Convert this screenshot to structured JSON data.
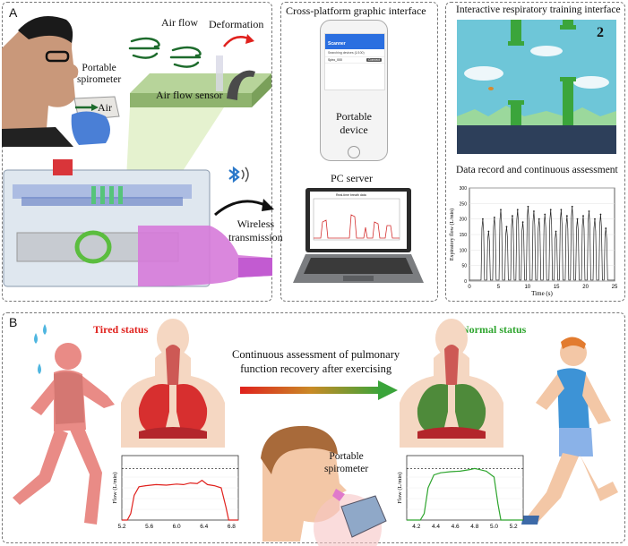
{
  "panel_a": {
    "letter": "A",
    "air_flow": "Air flow",
    "deformation": "Deformation",
    "portable_spirometer": "Portable\nspirometer",
    "air": "Air",
    "air_flow_sensor": "Air flow sensor",
    "wireless_transmission": "Wireless\ntransmission",
    "cross_platform_title": "Cross-platform graphic interface",
    "portable_device": "Portable\ndevice",
    "pc_server": "PC server",
    "phone_app": {
      "header": "Scanner",
      "sub": "Searching devices (1/100)",
      "item": "Spiro_000",
      "button": "Connect"
    },
    "monitor_title": "Real-time breath data",
    "game_title": "Interactive respiratory training interface",
    "game_score": "2",
    "record_title": "Data record and continuous assessment",
    "record_chart": {
      "xlabel": "Time (s)",
      "ylabel": "Expiratory flow (L/min)",
      "x_ticks": [
        "0",
        "5",
        "10",
        "15",
        "20",
        "25"
      ],
      "y_ticks": [
        "0",
        "50",
        "100",
        "150",
        "200",
        "250",
        "300"
      ],
      "xlim": [
        0,
        25
      ],
      "ylim": [
        0,
        300
      ]
    }
  },
  "panel_b": {
    "letter": "B",
    "tired_status": "Tired status",
    "normal_status": "Normal status",
    "caption": "Continuous assessment of pulmonary\nfunction recovery after exercising",
    "portable_spirometer": "Portable\nspirometer",
    "colors": {
      "tired": "#e0211d",
      "normal": "#2ea52e"
    }
  },
  "chart_data": [
    {
      "type": "line",
      "xlabel": "Time (s)",
      "ylabel": "Expiratory flow (L/min)",
      "xlim": [
        0,
        25
      ],
      "ylim": [
        0,
        300
      ],
      "x_ticks": [
        0,
        5,
        10,
        15,
        20,
        25
      ],
      "y_ticks": [
        0,
        50,
        100,
        150,
        200,
        250,
        300
      ],
      "peaks": [
        {
          "t": 2.3,
          "v": 200
        },
        {
          "t": 3.3,
          "v": 160
        },
        {
          "t": 4.3,
          "v": 205
        },
        {
          "t": 5.4,
          "v": 230
        },
        {
          "t": 6.4,
          "v": 175
        },
        {
          "t": 7.4,
          "v": 210
        },
        {
          "t": 8.3,
          "v": 230
        },
        {
          "t": 9.2,
          "v": 190
        },
        {
          "t": 10.1,
          "v": 240
        },
        {
          "t": 11.1,
          "v": 225
        },
        {
          "t": 12.0,
          "v": 200
        },
        {
          "t": 13.0,
          "v": 215
        },
        {
          "t": 14.0,
          "v": 230
        },
        {
          "t": 14.9,
          "v": 160
        },
        {
          "t": 15.8,
          "v": 230
        },
        {
          "t": 16.8,
          "v": 210
        },
        {
          "t": 17.7,
          "v": 240
        },
        {
          "t": 18.6,
          "v": 200
        },
        {
          "t": 19.6,
          "v": 210
        },
        {
          "t": 20.6,
          "v": 225
        },
        {
          "t": 21.6,
          "v": 200
        },
        {
          "t": 22.6,
          "v": 215
        },
        {
          "t": 23.5,
          "v": 170
        }
      ]
    },
    {
      "type": "line",
      "ylabel": "Flow (L/min)",
      "x_ticks": [
        "5.2",
        "5.6",
        "6.0",
        "6.4",
        "6.8"
      ],
      "xlim": [
        5.2,
        6.9
      ],
      "ylim": [
        0,
        600
      ],
      "reference": 480,
      "points": [
        [
          5.2,
          0
        ],
        [
          5.28,
          0
        ],
        [
          5.33,
          60
        ],
        [
          5.38,
          230
        ],
        [
          5.45,
          310
        ],
        [
          5.55,
          320
        ],
        [
          5.7,
          330
        ],
        [
          5.85,
          325
        ],
        [
          6.0,
          335
        ],
        [
          6.1,
          330
        ],
        [
          6.2,
          345
        ],
        [
          6.3,
          340
        ],
        [
          6.37,
          370
        ],
        [
          6.45,
          330
        ],
        [
          6.55,
          320
        ],
        [
          6.65,
          300
        ],
        [
          6.72,
          120
        ],
        [
          6.76,
          0
        ],
        [
          6.9,
          0
        ]
      ]
    },
    {
      "type": "line",
      "ylabel": "Flow (L/min)",
      "x_ticks": [
        "4.2",
        "4.4",
        "4.6",
        "4.8",
        "5.0",
        "5.2"
      ],
      "xlim": [
        4.1,
        5.3
      ],
      "ylim": [
        0,
        600
      ],
      "reference": 480,
      "points": [
        [
          4.1,
          0
        ],
        [
          4.24,
          0
        ],
        [
          4.28,
          60
        ],
        [
          4.32,
          300
        ],
        [
          4.38,
          420
        ],
        [
          4.45,
          440
        ],
        [
          4.55,
          450
        ],
        [
          4.65,
          455
        ],
        [
          4.75,
          470
        ],
        [
          4.8,
          480
        ],
        [
          4.85,
          470
        ],
        [
          4.92,
          455
        ],
        [
          5.0,
          400
        ],
        [
          5.04,
          150
        ],
        [
          5.07,
          0
        ],
        [
          5.3,
          0
        ]
      ]
    }
  ]
}
